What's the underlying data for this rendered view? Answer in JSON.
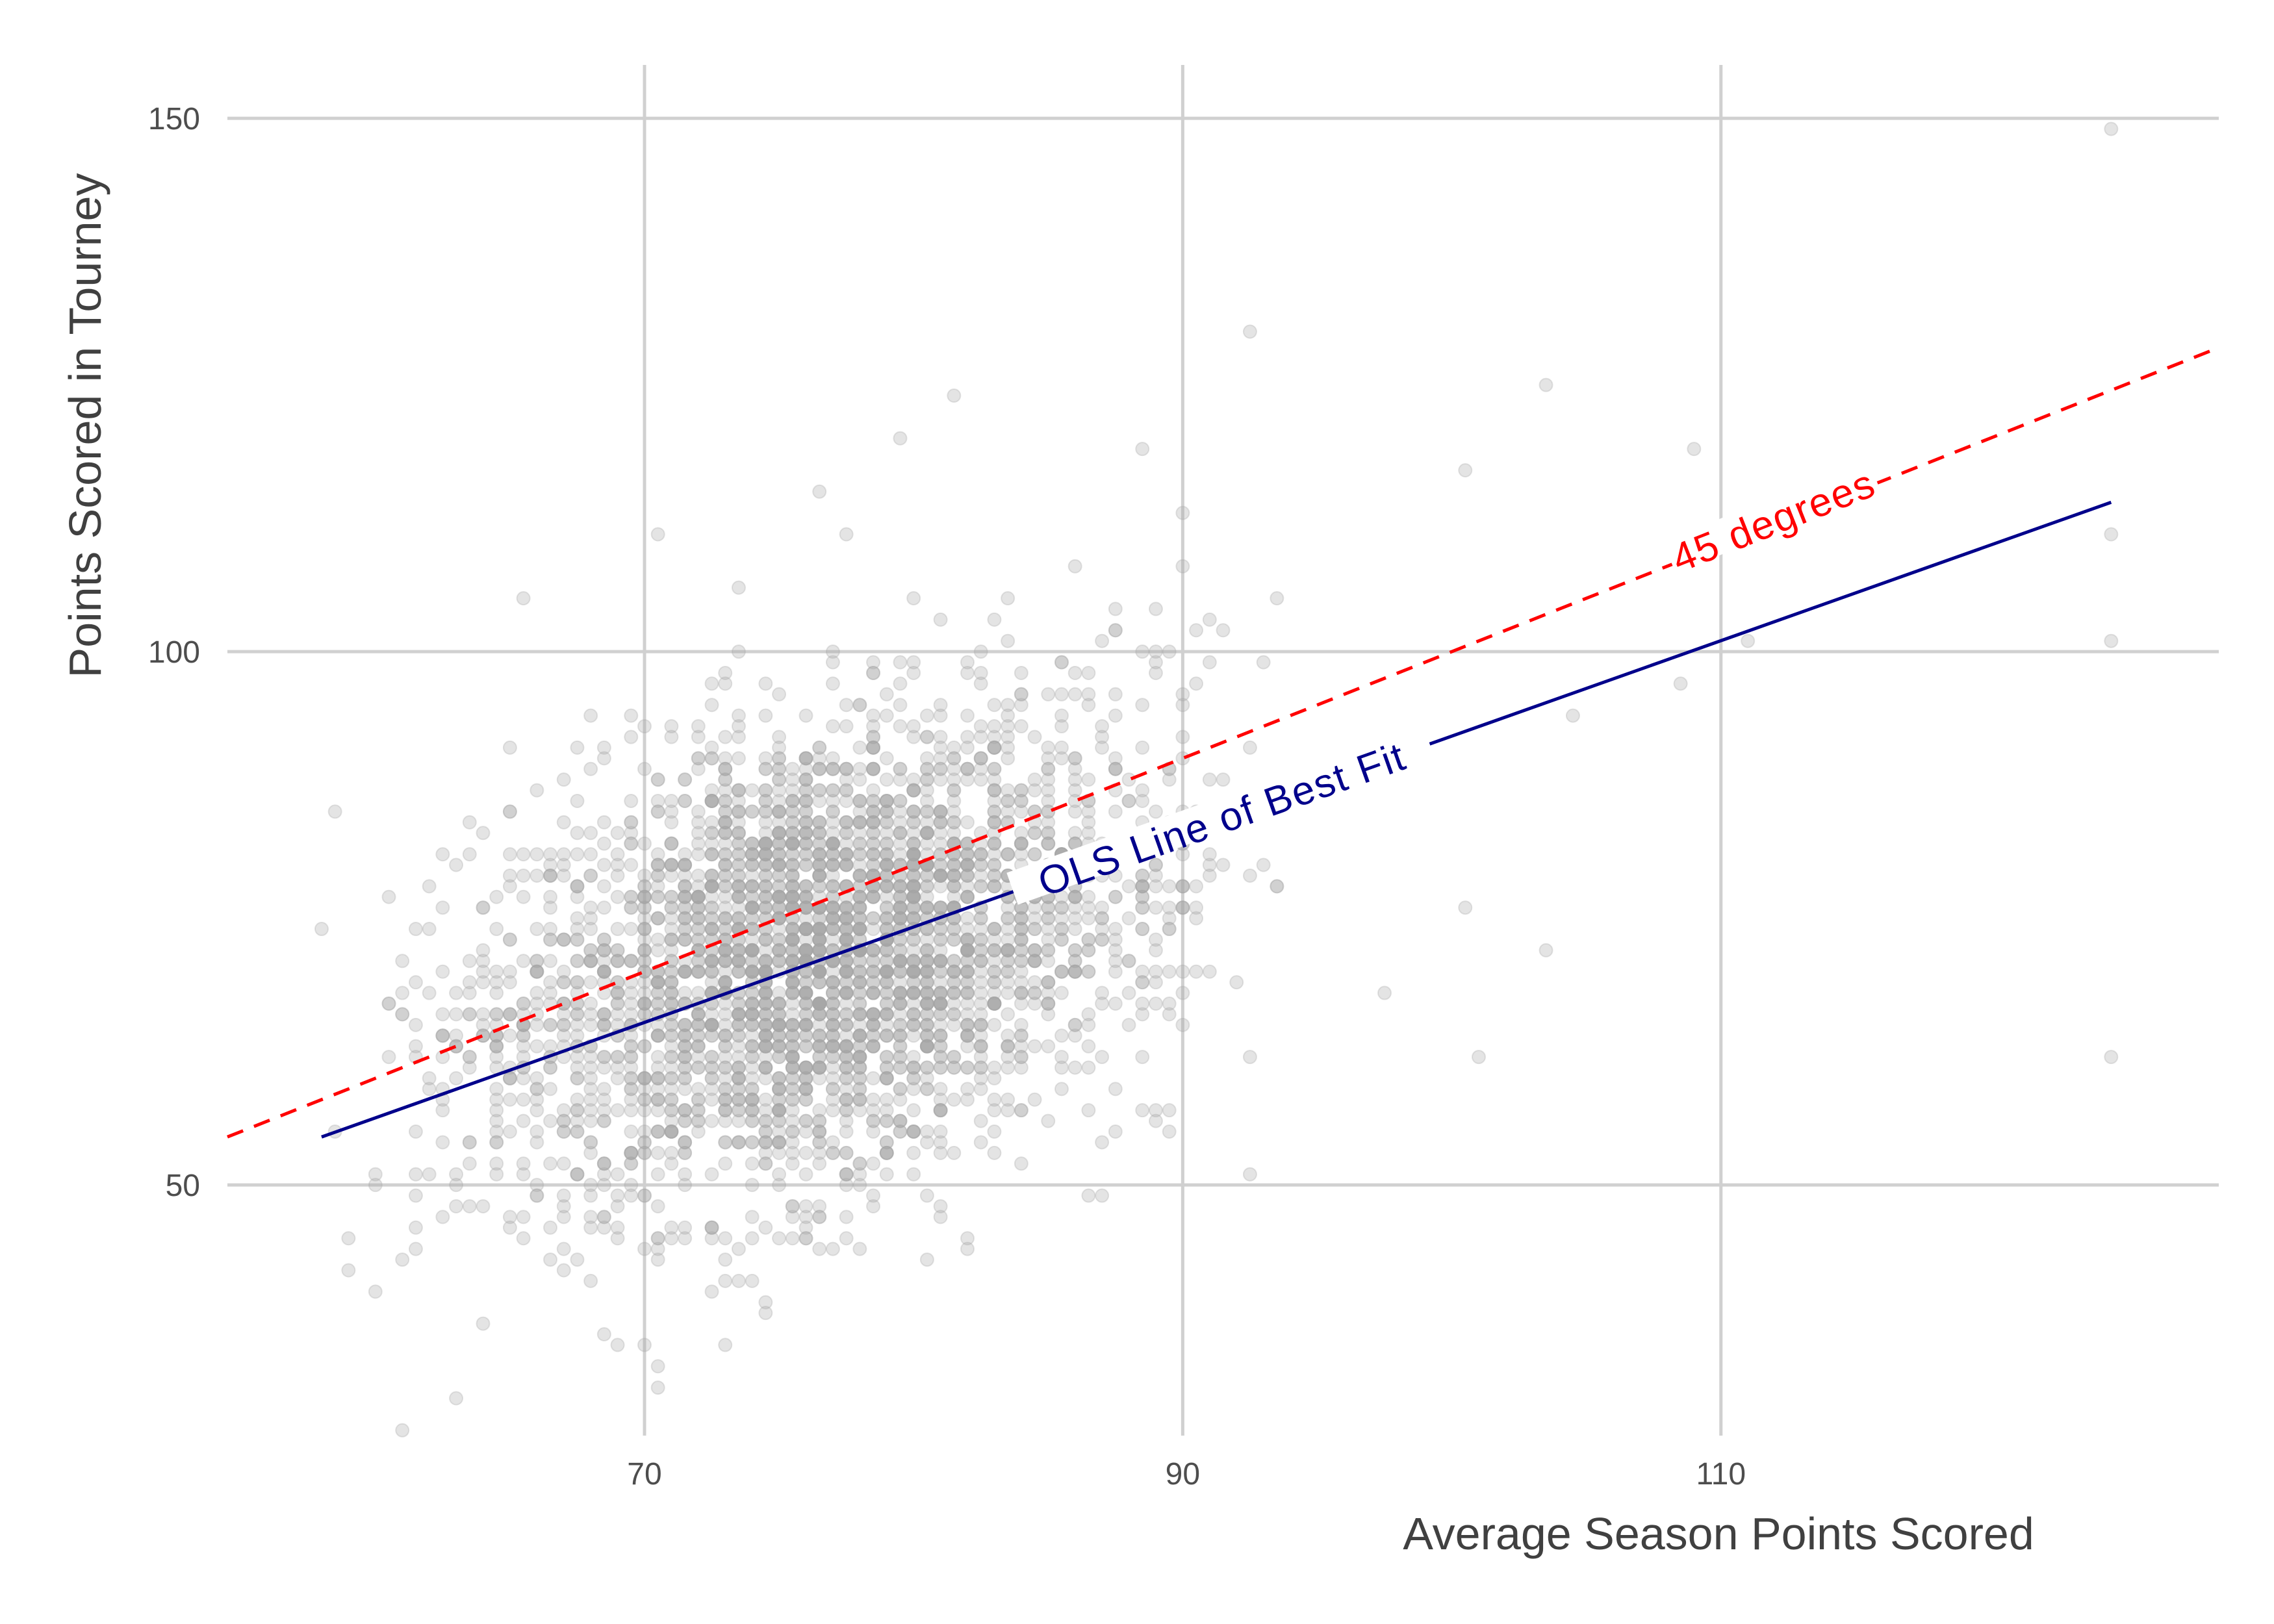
{
  "chart_data": {
    "type": "scatter",
    "title": "",
    "xlabel": "Average Season Points Scored",
    "ylabel": "Points Scored in Tourney",
    "xlim": [
      54.5,
      128.5
    ],
    "ylim": [
      26.5,
      155
    ],
    "x_ticks": [
      70,
      90,
      110
    ],
    "y_ticks": [
      50,
      100,
      150
    ],
    "x_tick_labels": [
      "70",
      "90",
      "110"
    ],
    "y_tick_labels": [
      "50",
      "100",
      "150"
    ],
    "grid": true,
    "legend": "none",
    "points": {
      "color": "#a6a6a6",
      "opacity": 0.3,
      "notable": [
        [
          124.5,
          149
        ],
        [
          124.5,
          111
        ],
        [
          124.5,
          101
        ],
        [
          124.5,
          62
        ],
        [
          92.5,
          130
        ],
        [
          103.5,
          125
        ],
        [
          81.5,
          124
        ],
        [
          79.5,
          120
        ],
        [
          109,
          119
        ],
        [
          88.5,
          119
        ],
        [
          100.5,
          117
        ],
        [
          104.5,
          94
        ],
        [
          111,
          101
        ],
        [
          108.5,
          97
        ],
        [
          70.5,
          111
        ],
        [
          76.5,
          115
        ],
        [
          61,
          27
        ],
        [
          63,
          30
        ],
        [
          70.5,
          33
        ],
        [
          60,
          40
        ],
        [
          59,
          42
        ],
        [
          92.5,
          51
        ],
        [
          101,
          62
        ],
        [
          100.5,
          76
        ],
        [
          103.5,
          72
        ],
        [
          97.5,
          68
        ]
      ],
      "bulk": [
        {
          "cx": 75.5,
          "cy": 71,
          "sx": 5.0,
          "sy": 11,
          "n": 2300
        },
        {
          "cx": 80,
          "cy": 74,
          "sx": 3.5,
          "sy": 10,
          "n": 500
        },
        {
          "cx": 66,
          "cy": 62,
          "sx": 3.0,
          "sy": 9,
          "n": 180
        },
        {
          "cx": 87.5,
          "cy": 81,
          "sx": 3.0,
          "sy": 11,
          "n": 220
        }
      ]
    },
    "lines": [
      {
        "name": "45 degrees",
        "color": "#ff0000",
        "dash": "dashed",
        "x": [
          54.5,
          128.5
        ],
        "y": [
          54.5,
          128.5
        ],
        "label": "45 degrees",
        "label_x": 112,
        "label_y": 112.0
      },
      {
        "name": "OLS Line of Best Fit",
        "color": "#00008b",
        "dash": "solid",
        "x": [
          58,
          124.5
        ],
        "y": [
          54.5,
          114
        ],
        "label": "OLS Line of Best Fit",
        "label_x": 91.5,
        "label_y": 84.0
      }
    ]
  }
}
